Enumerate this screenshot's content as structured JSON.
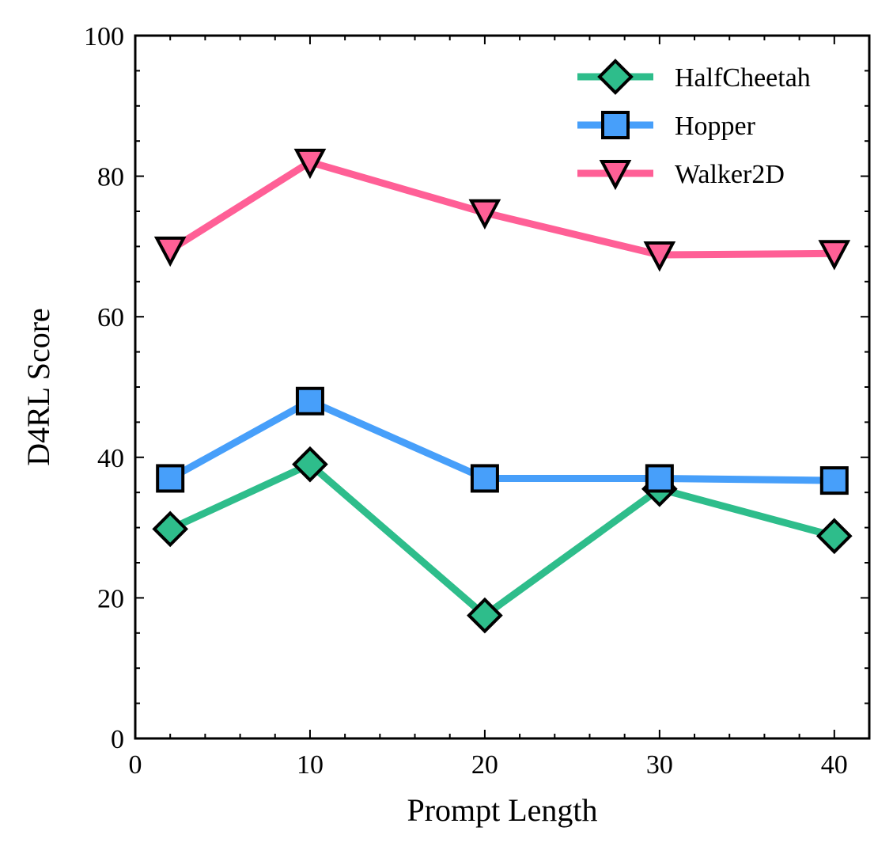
{
  "chart_data": {
    "type": "line",
    "title": "",
    "xlabel": "Prompt Length",
    "ylabel": "D4RL Score",
    "xlim": [
      0,
      42
    ],
    "ylim": [
      0,
      100
    ],
    "x_major_ticks": [
      0,
      10,
      20,
      30,
      40
    ],
    "x_minor_ticks": [
      2,
      4,
      6,
      8,
      12,
      14,
      16,
      18,
      22,
      24,
      26,
      28,
      32,
      34,
      36,
      38
    ],
    "y_major_ticks": [
      0,
      20,
      40,
      60,
      80,
      100
    ],
    "y_minor_ticks": [
      5,
      10,
      15,
      25,
      30,
      35,
      45,
      50,
      55,
      65,
      70,
      75,
      85,
      90,
      95
    ],
    "x_tick_labels": [
      "0",
      "10",
      "20",
      "30",
      "40"
    ],
    "y_tick_labels": [
      "0",
      "20",
      "40",
      "60",
      "80",
      "100"
    ],
    "grid": false,
    "legend_position": "top-right",
    "x": [
      2,
      10,
      20,
      30,
      40
    ],
    "series": [
      {
        "name": "HalfCheetah",
        "color": "#2ebd8b",
        "marker": "diamond",
        "values": [
          29.8,
          39.0,
          17.5,
          35.5,
          28.8
        ]
      },
      {
        "name": "Hopper",
        "color": "#479ffa",
        "marker": "square",
        "values": [
          37.0,
          48.0,
          37.0,
          37.0,
          36.7
        ]
      },
      {
        "name": "Walker2D",
        "color": "#ff5f96",
        "marker": "triangle-down",
        "values": [
          69.5,
          82.0,
          74.8,
          68.8,
          69.0
        ]
      }
    ]
  }
}
